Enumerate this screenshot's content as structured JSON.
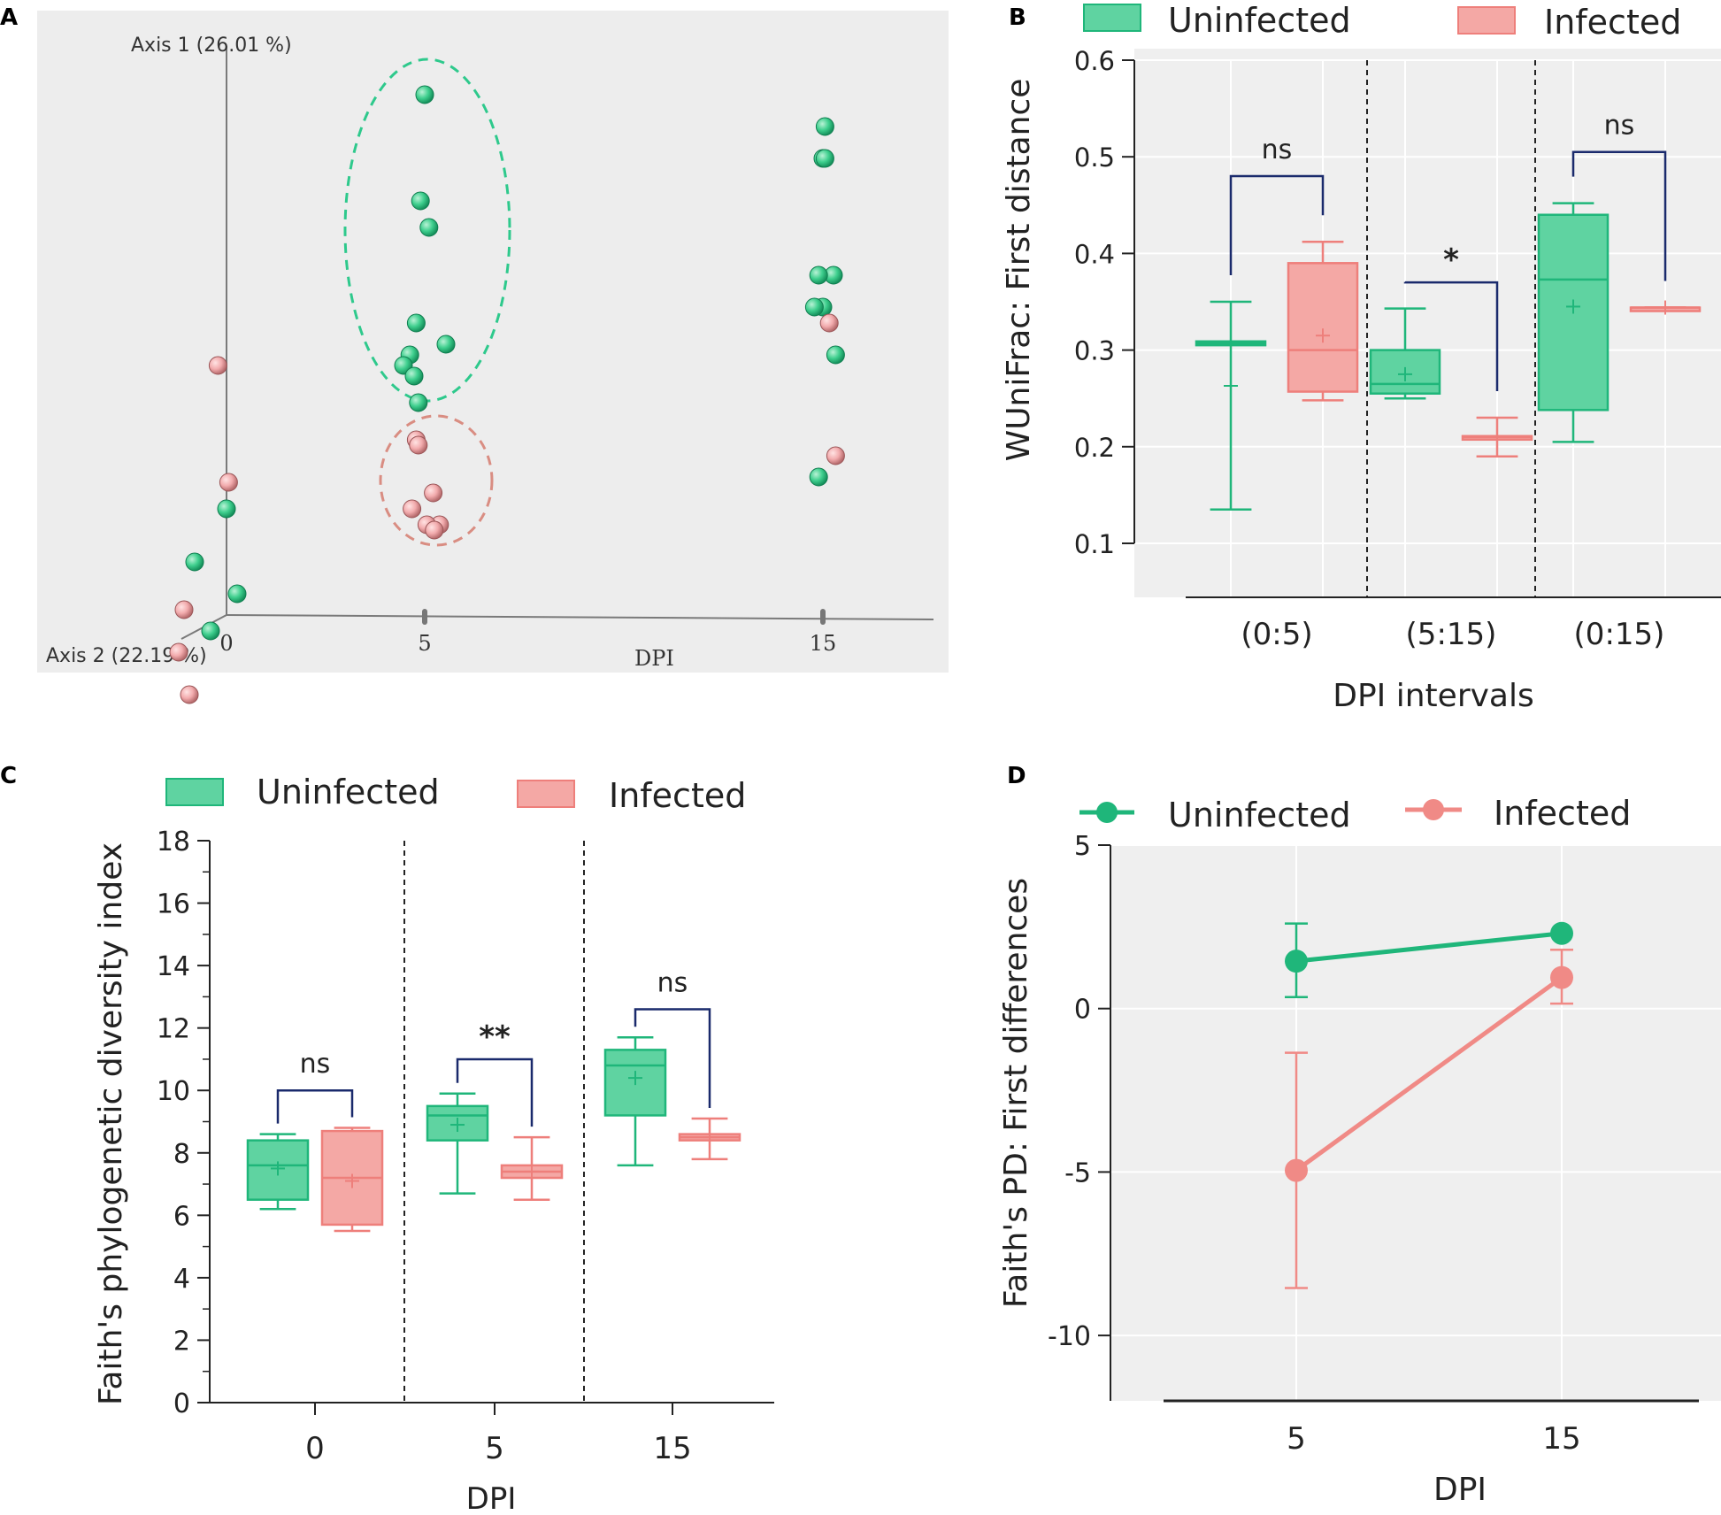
{
  "colors": {
    "green": "#36c98d",
    "green_fill": "#5fd3a1",
    "green_line": "#1fb67a",
    "red": "#f08a86",
    "red_fill": "#f4a8a5",
    "red_line": "#ee7f7b",
    "sig_bracket": "#1a2a6c",
    "panel_bg": "#efefef",
    "scatter_bg": "#ededed"
  },
  "panels": {
    "A": "A",
    "B": "B",
    "C": "C",
    "D": "D"
  },
  "chart_data": [
    {
      "panel": "A",
      "type": "scatter",
      "title": "",
      "axis1_label": "Axis 1 (26.01 %)",
      "axis2_label": "Axis 2 (22.19 %)",
      "xlabel": "DPI",
      "x_ticks": [
        "0",
        "5",
        "15"
      ],
      "series": [
        {
          "name": "Uninfected",
          "color": "green",
          "points": [
            {
              "dpi": 0,
              "axis1": 0.2,
              "depth": 0.0
            },
            {
              "dpi": 0,
              "axis1": 0.1,
              "depth": -0.3
            },
            {
              "dpi": 0,
              "axis1": 0.04,
              "depth": 0.1
            },
            {
              "dpi": 0,
              "axis1": -0.03,
              "depth": -0.15
            },
            {
              "dpi": 5,
              "axis1": 0.98,
              "depth": 0.0
            },
            {
              "dpi": 5,
              "axis1": 0.78,
              "depth": -0.04
            },
            {
              "dpi": 5,
              "axis1": 0.73,
              "depth": 0.04
            },
            {
              "dpi": 5,
              "axis1": 0.55,
              "depth": -0.08
            },
            {
              "dpi": 5,
              "axis1": 0.51,
              "depth": 0.2
            },
            {
              "dpi": 5,
              "axis1": 0.49,
              "depth": -0.14
            },
            {
              "dpi": 5,
              "axis1": 0.47,
              "depth": -0.2
            },
            {
              "dpi": 5,
              "axis1": 0.45,
              "depth": -0.1
            },
            {
              "dpi": 5,
              "axis1": 0.4,
              "depth": -0.06
            },
            {
              "dpi": 15,
              "axis1": 0.92,
              "depth": 0.02
            },
            {
              "dpi": 15,
              "axis1": 0.86,
              "depth": 0.0
            },
            {
              "dpi": 15,
              "axis1": 0.86,
              "depth": 0.02
            },
            {
              "dpi": 15,
              "axis1": 0.64,
              "depth": 0.1
            },
            {
              "dpi": 15,
              "axis1": 0.64,
              "depth": -0.04
            },
            {
              "dpi": 15,
              "axis1": 0.58,
              "depth": 0.0
            },
            {
              "dpi": 15,
              "axis1": 0.58,
              "depth": -0.08
            },
            {
              "dpi": 15,
              "axis1": 0.49,
              "depth": 0.12
            },
            {
              "dpi": 15,
              "axis1": 0.26,
              "depth": -0.04
            }
          ]
        },
        {
          "name": "Infected",
          "color": "red",
          "points": [
            {
              "dpi": 0,
              "axis1": 0.47,
              "depth": -0.08
            },
            {
              "dpi": 0,
              "axis1": 0.25,
              "depth": 0.02
            },
            {
              "dpi": 0,
              "axis1": 0.01,
              "depth": -0.4
            },
            {
              "dpi": 0,
              "axis1": -0.07,
              "depth": -0.45
            },
            {
              "dpi": 0,
              "axis1": -0.15,
              "depth": -0.35
            },
            {
              "dpi": 5,
              "axis1": 0.33,
              "depth": -0.08
            },
            {
              "dpi": 5,
              "axis1": 0.32,
              "depth": -0.06
            },
            {
              "dpi": 5,
              "axis1": 0.23,
              "depth": 0.08
            },
            {
              "dpi": 5,
              "axis1": 0.2,
              "depth": -0.12
            },
            {
              "dpi": 5,
              "axis1": 0.17,
              "depth": 0.14
            },
            {
              "dpi": 5,
              "axis1": 0.17,
              "depth": 0.02
            },
            {
              "dpi": 5,
              "axis1": 0.16,
              "depth": 0.09
            },
            {
              "dpi": 15,
              "axis1": 0.55,
              "depth": 0.06
            },
            {
              "dpi": 15,
              "axis1": 0.3,
              "depth": 0.12
            }
          ]
        }
      ]
    },
    {
      "panel": "B",
      "type": "box",
      "title": "",
      "xlabel": "DPI intervals",
      "ylabel": "WUniFrac: First distance",
      "ylim": [
        0.1,
        0.6
      ],
      "y_ticks": [
        "0.1",
        "0.2",
        "0.3",
        "0.4",
        "0.5",
        "0.6"
      ],
      "categories": [
        "(0:5)",
        "(5:15)",
        "(0:15)"
      ],
      "legend": [
        "Uninfected",
        "Infected"
      ],
      "series": [
        {
          "name": "Uninfected",
          "boxes": [
            {
              "min": 0.135,
              "q1": 0.305,
              "median": 0.307,
              "q3": 0.309,
              "max": 0.35,
              "mean": 0.263
            },
            {
              "min": 0.25,
              "q1": 0.255,
              "median": 0.265,
              "q3": 0.3,
              "max": 0.343,
              "mean": 0.275
            },
            {
              "min": 0.205,
              "q1": 0.238,
              "median": 0.373,
              "q3": 0.44,
              "max": 0.452,
              "mean": 0.345
            }
          ]
        },
        {
          "name": "Infected",
          "boxes": [
            {
              "min": 0.248,
              "q1": 0.257,
              "median": 0.3,
              "q3": 0.39,
              "max": 0.412,
              "mean": 0.315
            },
            {
              "min": 0.19,
              "q1": 0.209,
              "median": 0.21,
              "q3": 0.211,
              "max": 0.23,
              "mean": 0.21
            },
            {
              "min": 0.344,
              "q1": 0.344,
              "median": 0.344,
              "q3": 0.344,
              "max": 0.344,
              "mean": 0.344
            }
          ]
        }
      ],
      "annotations": [
        {
          "category": "(0:5)",
          "text": "ns",
          "y": 0.48
        },
        {
          "category": "(5:15)",
          "text": "*",
          "y": 0.37
        },
        {
          "category": "(0:15)",
          "text": "ns",
          "y": 0.505
        }
      ]
    },
    {
      "panel": "C",
      "type": "box",
      "title": "",
      "xlabel": "DPI",
      "ylabel": "Faith's phylogenetic diversity index",
      "ylim": [
        0,
        18
      ],
      "y_ticks": [
        "0",
        "2",
        "4",
        "6",
        "8",
        "10",
        "12",
        "14",
        "16",
        "18"
      ],
      "categories": [
        "0",
        "5",
        "15"
      ],
      "legend": [
        "Uninfected",
        "Infected"
      ],
      "series": [
        {
          "name": "Uninfected",
          "boxes": [
            {
              "min": 6.2,
              "q1": 6.5,
              "median": 7.6,
              "q3": 8.4,
              "max": 8.6,
              "mean": 7.5
            },
            {
              "min": 6.7,
              "q1": 8.4,
              "median": 9.2,
              "q3": 9.5,
              "max": 9.9,
              "mean": 8.9
            },
            {
              "min": 7.6,
              "q1": 9.2,
              "median": 10.8,
              "q3": 11.3,
              "max": 11.7,
              "mean": 10.4
            }
          ]
        },
        {
          "name": "Infected",
          "boxes": [
            {
              "min": 5.5,
              "q1": 5.7,
              "median": 7.2,
              "q3": 8.7,
              "max": 8.8,
              "mean": 7.1
            },
            {
              "min": 6.5,
              "q1": 7.2,
              "median": 7.4,
              "q3": 7.6,
              "max": 8.5,
              "mean": 7.4
            },
            {
              "min": 7.8,
              "q1": 8.4,
              "median": 8.5,
              "q3": 8.6,
              "max": 9.1,
              "mean": 8.5
            }
          ]
        }
      ],
      "annotations": [
        {
          "category": "0",
          "text": "ns",
          "y": 10.0
        },
        {
          "category": "5",
          "text": "**",
          "y": 11.0
        },
        {
          "category": "15",
          "text": "ns",
          "y": 12.6
        }
      ]
    },
    {
      "panel": "D",
      "type": "line",
      "title": "",
      "xlabel": "DPI",
      "ylabel": "Faith's PD: First differences",
      "ylim": [
        -12,
        5
      ],
      "y_ticks": [
        "-10",
        "-5",
        "0",
        "5"
      ],
      "categories": [
        "5",
        "15"
      ],
      "legend": [
        "Uninfected",
        "Infected"
      ],
      "series": [
        {
          "name": "Uninfected",
          "values": [
            1.45,
            2.3
          ],
          "err_low": [
            0.35,
            2.3
          ],
          "err_high": [
            2.6,
            2.3
          ]
        },
        {
          "name": "Infected",
          "values": [
            -4.95,
            0.95
          ],
          "err_low": [
            -8.55,
            0.15
          ],
          "err_high": [
            -1.35,
            1.8
          ]
        }
      ]
    }
  ]
}
